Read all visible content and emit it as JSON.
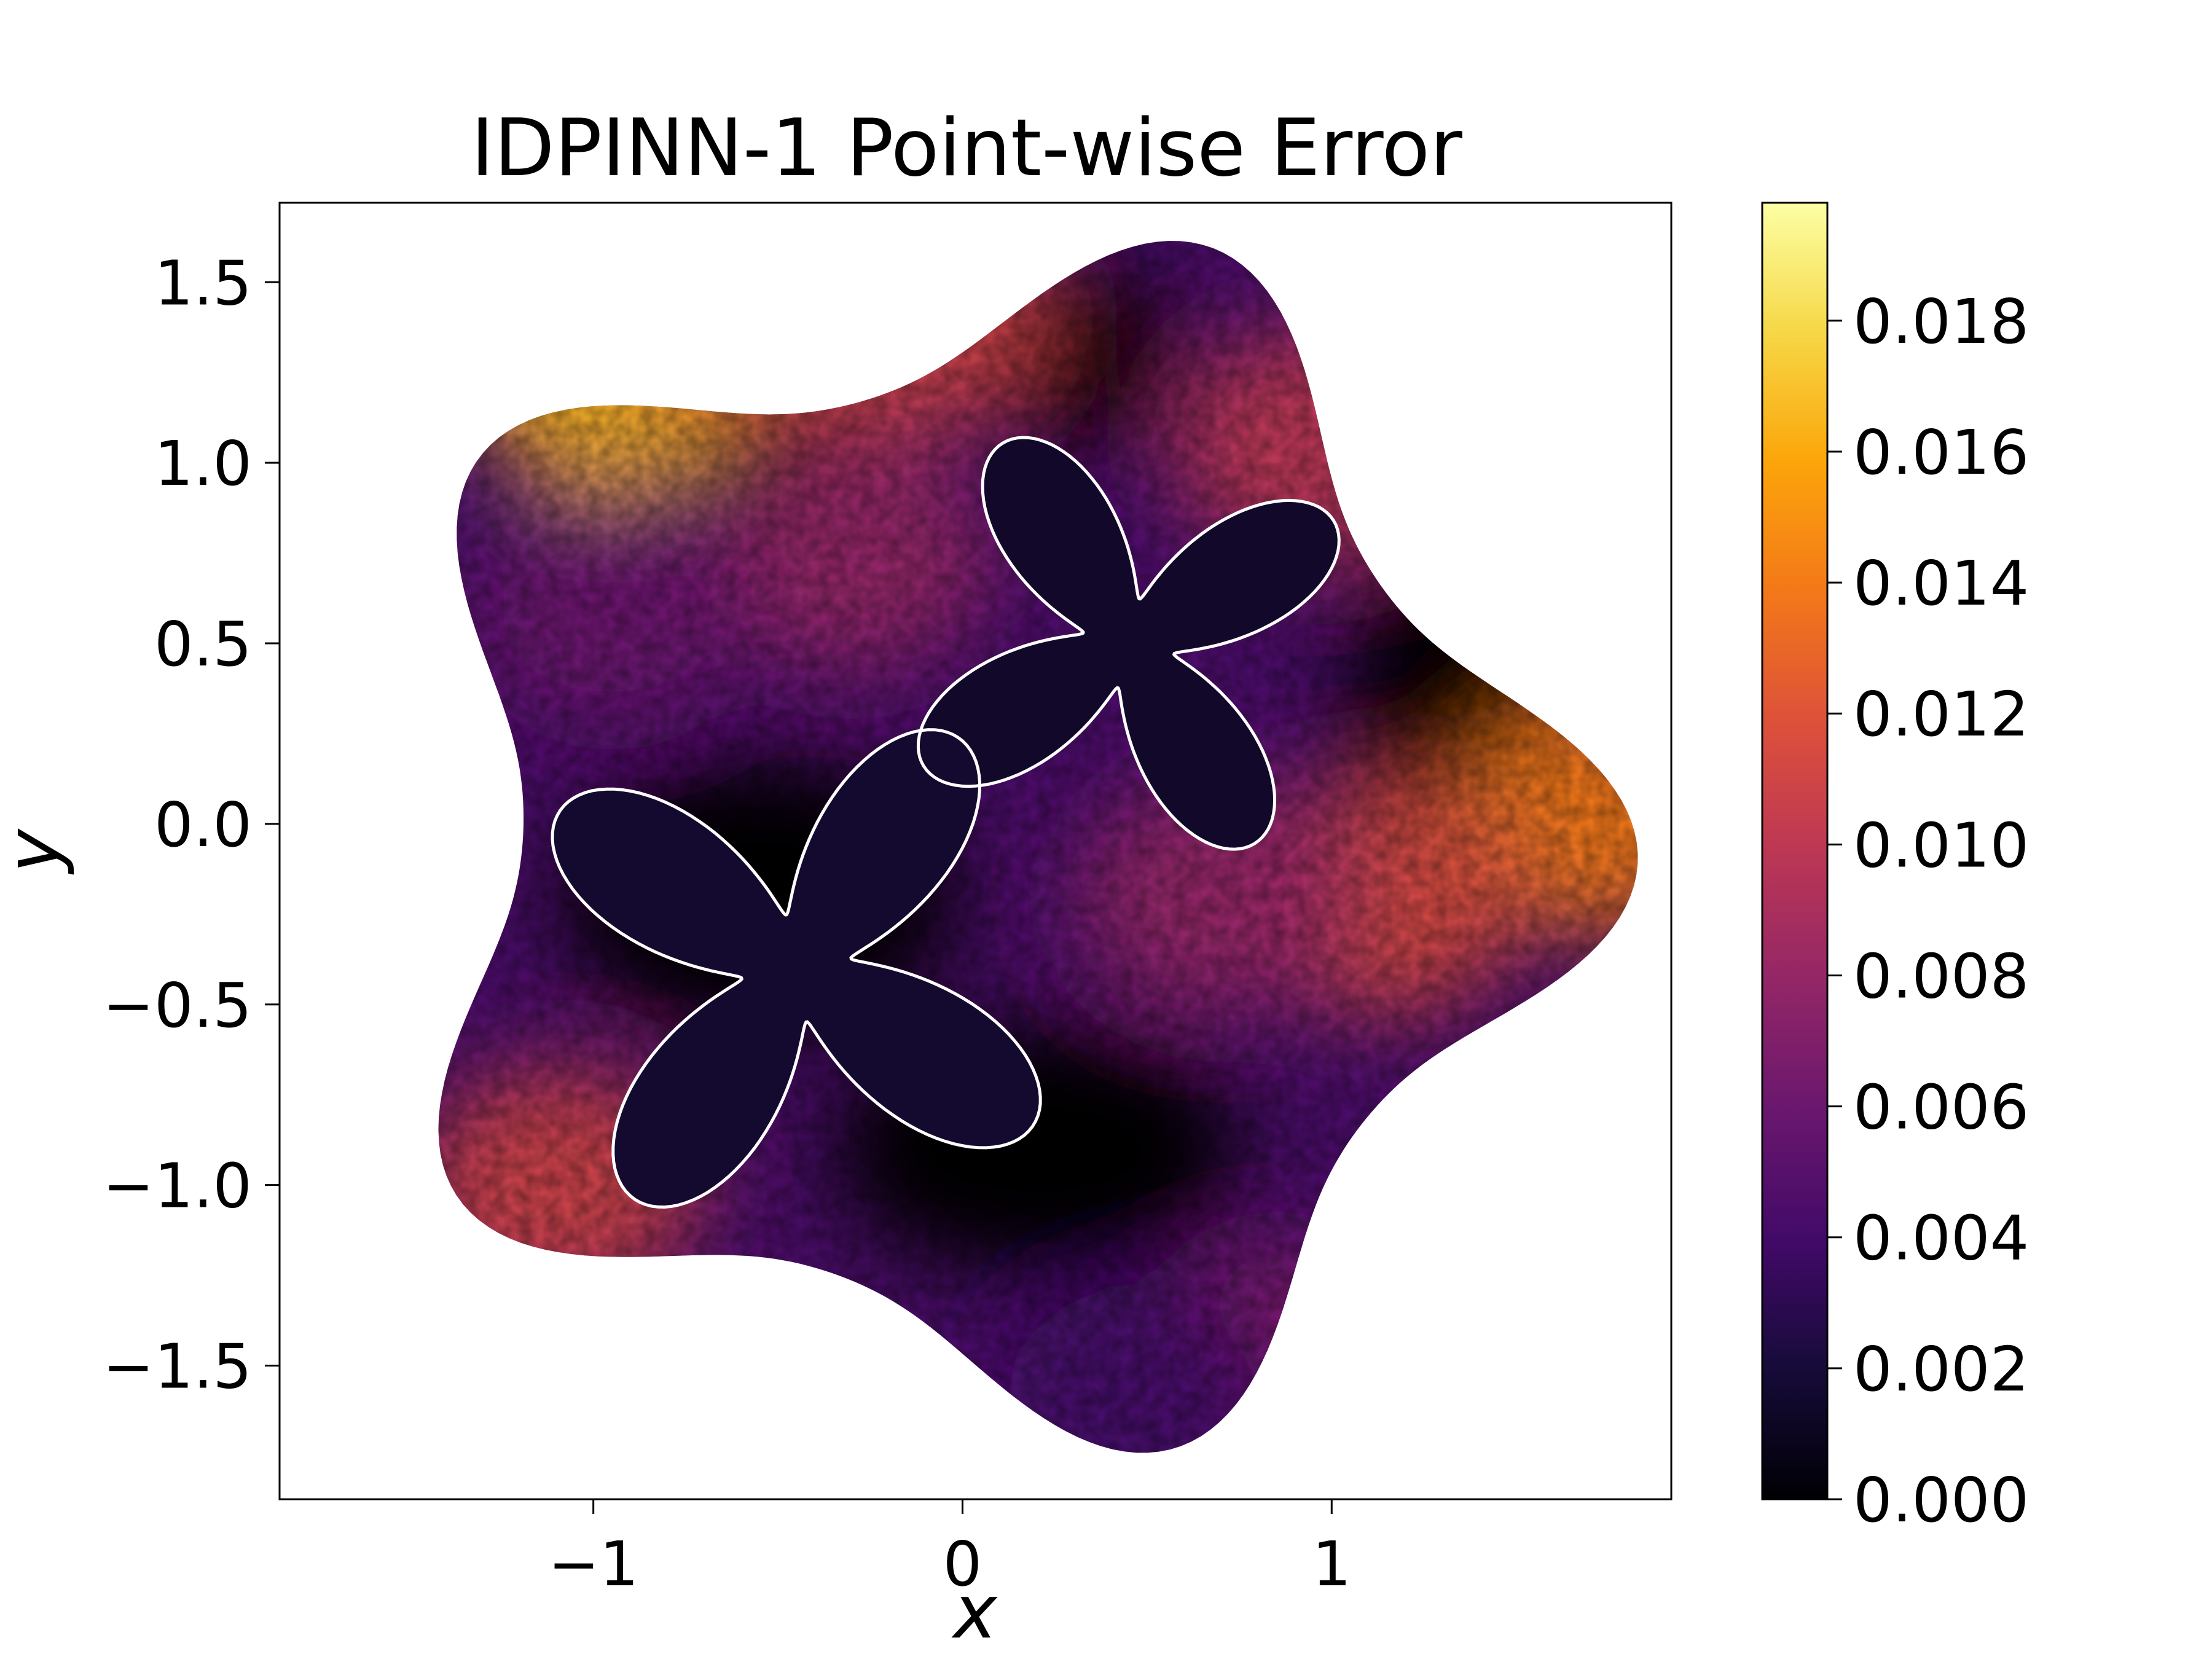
{
  "chart_data": {
    "type": "heatmap",
    "title": "IDPINN-1 Point-wise Error",
    "xlabel": "x",
    "ylabel": "y",
    "xlim": [
      -1.85,
      1.92
    ],
    "ylim": [
      -1.87,
      1.72
    ],
    "xticks": [
      {
        "value": -1,
        "label": "−1"
      },
      {
        "value": 0,
        "label": "0"
      },
      {
        "value": 1,
        "label": "1"
      }
    ],
    "yticks": [
      {
        "value": 1.5,
        "label": "1.5"
      },
      {
        "value": 1.0,
        "label": "1.0"
      },
      {
        "value": 0.5,
        "label": "0.5"
      },
      {
        "value": 0.0,
        "label": "0.0"
      },
      {
        "value": -0.5,
        "label": "−0.5"
      },
      {
        "value": -1.0,
        "label": "−1.0"
      },
      {
        "value": -1.5,
        "label": "−1.5"
      }
    ],
    "colorbar": {
      "colormap": "inferno",
      "range": [
        0.0,
        0.0198
      ],
      "ticks": [
        {
          "value": 0.0,
          "label": "0.000"
        },
        {
          "value": 0.002,
          "label": "0.002"
        },
        {
          "value": 0.004,
          "label": "0.004"
        },
        {
          "value": 0.006,
          "label": "0.006"
        },
        {
          "value": 0.008,
          "label": "0.008"
        },
        {
          "value": 0.01,
          "label": "0.010"
        },
        {
          "value": 0.012,
          "label": "0.012"
        },
        {
          "value": 0.014,
          "label": "0.014"
        },
        {
          "value": 0.016,
          "label": "0.016"
        },
        {
          "value": 0.018,
          "label": "0.018"
        }
      ]
    },
    "domain": {
      "outer_boundary": "smooth five-lobed closed curve",
      "hole_boundary_color": "#ffffff",
      "holes": [
        {
          "center": [
            0.45,
            0.5
          ],
          "shape": "four-petal butterfly"
        },
        {
          "center": [
            -0.45,
            -0.4
          ],
          "shape": "four-petal butterfly"
        }
      ]
    },
    "error_regions": [
      {
        "x": -0.95,
        "y": 1.25,
        "value": 0.0165
      },
      {
        "x": -0.55,
        "y": 1.45,
        "value": 0.012
      },
      {
        "x": -0.15,
        "y": 1.4,
        "value": 0.011
      },
      {
        "x": 0.95,
        "y": 1.05,
        "value": 0.01
      },
      {
        "x": -0.3,
        "y": 0.75,
        "value": 0.008
      },
      {
        "x": 1.72,
        "y": 0.02,
        "value": 0.014
      },
      {
        "x": 1.15,
        "y": -0.2,
        "value": 0.0115
      },
      {
        "x": 0.7,
        "y": -0.2,
        "value": 0.008
      },
      {
        "x": -1.1,
        "y": -1.0,
        "value": 0.011
      },
      {
        "x": -0.95,
        "y": 0.6,
        "value": 0.006
      },
      {
        "x": 0.85,
        "y": -1.5,
        "value": 0.007
      },
      {
        "x": 0.5,
        "y": -1.6,
        "value": 0.004
      }
    ]
  }
}
